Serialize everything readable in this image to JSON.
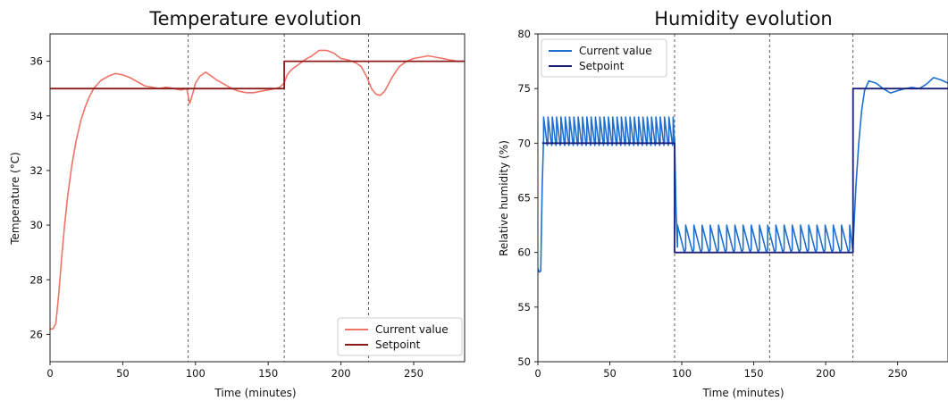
{
  "chart_data": [
    {
      "type": "line",
      "title": "Temperature evolution",
      "xlabel": "Time (minutes)",
      "ylabel": "Temperature (°C)",
      "xlim": [
        0,
        285
      ],
      "ylim": [
        25,
        37
      ],
      "xticks": [
        0,
        50,
        100,
        150,
        200,
        250
      ],
      "yticks": [
        26,
        28,
        30,
        32,
        34,
        36
      ],
      "vlines": [
        95,
        161,
        219
      ],
      "legend": {
        "placement": "bottom-right"
      },
      "grid": false,
      "series": [
        {
          "name": "Current value",
          "color": "#f07367",
          "x": [
            0,
            2,
            4,
            6,
            8,
            10,
            12,
            15,
            18,
            21,
            24,
            27,
            30,
            35,
            40,
            45,
            50,
            55,
            60,
            65,
            70,
            75,
            80,
            85,
            90,
            94,
            96,
            98,
            100,
            103,
            107,
            111,
            115,
            120,
            125,
            130,
            135,
            140,
            145,
            150,
            155,
            158,
            161,
            163,
            166,
            170,
            175,
            180,
            185,
            190,
            195,
            200,
            205,
            210,
            214,
            218,
            221,
            224,
            227,
            230,
            235,
            240,
            245,
            250,
            255,
            260,
            265,
            270,
            275,
            280,
            285
          ],
          "y": [
            26.2,
            26.2,
            26.4,
            27.5,
            28.8,
            30.0,
            31.0,
            32.2,
            33.1,
            33.8,
            34.3,
            34.7,
            35.0,
            35.3,
            35.45,
            35.55,
            35.5,
            35.4,
            35.25,
            35.1,
            35.05,
            35.0,
            35.05,
            35.0,
            34.95,
            35.0,
            34.45,
            34.8,
            35.2,
            35.45,
            35.6,
            35.45,
            35.3,
            35.15,
            35.0,
            34.9,
            34.85,
            34.85,
            34.9,
            34.95,
            35.0,
            35.05,
            35.2,
            35.5,
            35.7,
            35.85,
            36.05,
            36.2,
            36.4,
            36.4,
            36.3,
            36.1,
            36.05,
            35.95,
            35.8,
            35.4,
            35.0,
            34.8,
            34.75,
            34.9,
            35.4,
            35.8,
            36.0,
            36.1,
            36.15,
            36.2,
            36.15,
            36.1,
            36.05,
            36.0,
            36.0
          ]
        },
        {
          "name": "Setpoint",
          "color": "#8b1a1a",
          "x": [
            0,
            161,
            161,
            285
          ],
          "y": [
            35,
            35,
            36,
            36
          ]
        }
      ]
    },
    {
      "type": "line",
      "title": "Humidity evolution",
      "xlabel": "Time (minutes)",
      "ylabel": "Relative humidity (%)",
      "xlim": [
        0,
        285
      ],
      "ylim": [
        50,
        80
      ],
      "xticks": [
        0,
        50,
        100,
        150,
        200,
        250
      ],
      "yticks": [
        50,
        55,
        60,
        65,
        70,
        75,
        80
      ],
      "vlines": [
        95,
        161,
        219
      ],
      "legend": {
        "placement": "top-left"
      },
      "grid": false,
      "series": [
        {
          "name": "Current value",
          "color": "#1f6fd1",
          "segments": [
            {
              "x": [
                0,
                1,
                2,
                3,
                4
              ],
              "y": [
                58.5,
                58.2,
                58.3,
                66.0,
                70.5
              ]
            },
            {
              "from": 4,
              "to": 95,
              "pattern": "sawtooth",
              "low": 69.8,
              "high": 72.4,
              "period": 3.0
            },
            {
              "x": [
                95,
                96,
                97
              ],
              "y": [
                70.5,
                64.0,
                60.5
              ]
            },
            {
              "from": 97,
              "to": 219,
              "pattern": "sawtooth",
              "low": 60.0,
              "high": 62.5,
              "period": 5.7
            },
            {
              "x": [
                219,
                221,
                223,
                225,
                227,
                230,
                235,
                240,
                245,
                250,
                255,
                260,
                265,
                270,
                275,
                280,
                285
              ],
              "y": [
                60.5,
                66.0,
                70.0,
                73.0,
                74.8,
                75.7,
                75.5,
                75.0,
                74.6,
                74.8,
                75.0,
                75.1,
                75.0,
                75.4,
                76.0,
                75.8,
                75.5
              ]
            }
          ]
        },
        {
          "name": "Setpoint",
          "color": "#1a1f7a",
          "x": [
            3,
            95,
            95,
            219,
            219,
            285
          ],
          "y": [
            70,
            70,
            60,
            60,
            75,
            75
          ]
        }
      ]
    }
  ]
}
